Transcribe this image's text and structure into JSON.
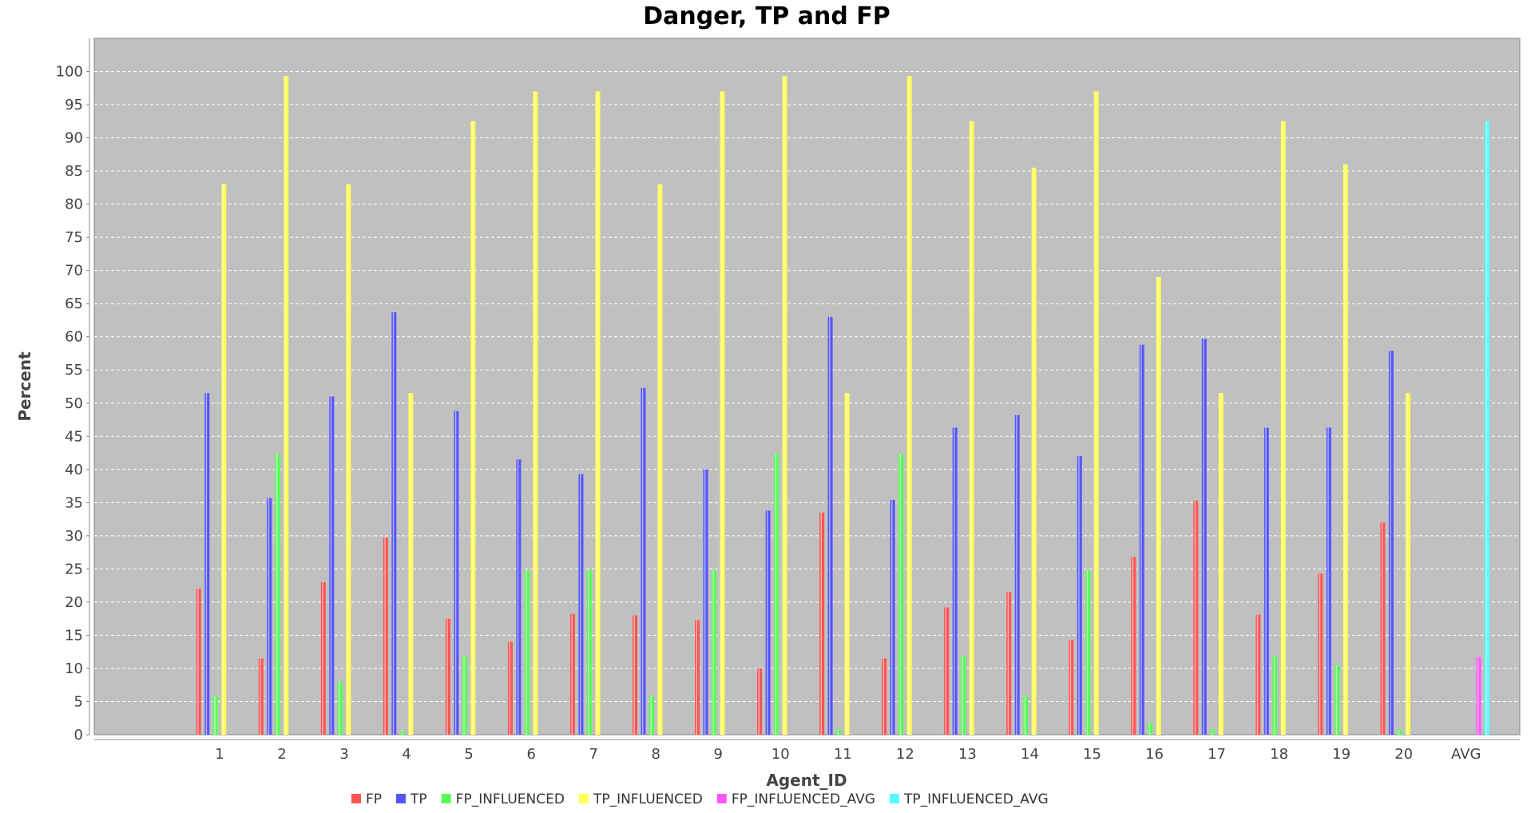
{
  "chart_data": {
    "type": "bar",
    "title": "Danger, TP and FP",
    "xlabel": "Agent_ID",
    "ylabel": "Percent",
    "ylim": [
      0,
      105
    ],
    "yticks": [
      0,
      5,
      10,
      15,
      20,
      25,
      30,
      35,
      40,
      45,
      50,
      55,
      60,
      65,
      70,
      75,
      80,
      85,
      90,
      95,
      100
    ],
    "grid": true,
    "legend_position": "bottom",
    "plot_background": "#c0c0c0",
    "categories": [
      "1",
      "2",
      "3",
      "4",
      "5",
      "6",
      "7",
      "8",
      "9",
      "10",
      "11",
      "12",
      "13",
      "14",
      "15",
      "16",
      "17",
      "18",
      "19",
      "20",
      "AVG"
    ],
    "series": [
      {
        "name": "FP",
        "color": "#ff5555",
        "values": [
          22,
          11.5,
          23,
          29.7,
          17.5,
          14,
          18.2,
          18,
          17.3,
          10,
          33.5,
          11.5,
          19.2,
          21.5,
          14.3,
          26.8,
          35.3,
          18.1,
          24.3,
          32,
          null
        ]
      },
      {
        "name": "TP",
        "color": "#5555ff",
        "values": [
          51.5,
          35.7,
          51,
          63.7,
          48.8,
          41.5,
          39.3,
          52.3,
          40,
          33.8,
          63,
          35.4,
          46.3,
          48.2,
          42,
          58.8,
          59.7,
          46.3,
          46.3,
          57.9,
          null
        ]
      },
      {
        "name": "FP_INFLUENCED",
        "color": "#55ff55",
        "values": [
          5.8,
          42.3,
          8,
          0.5,
          11.8,
          24.8,
          24.8,
          5.8,
          24.8,
          42.3,
          0.8,
          42.3,
          11.8,
          5.8,
          24.8,
          1.8,
          0.8,
          11.8,
          10.5,
          0.7,
          null
        ]
      },
      {
        "name": "TP_INFLUENCED",
        "color": "#ffff55",
        "values": [
          83,
          99.3,
          83,
          51.5,
          92.5,
          97,
          97,
          83,
          97,
          99.3,
          51.5,
          99.3,
          92.5,
          85.5,
          97,
          69,
          51.5,
          92.5,
          86,
          51.5,
          null
        ]
      },
      {
        "name": "FP_INFLUENCED_AVG",
        "color": "#ff55ff",
        "values": [
          null,
          null,
          null,
          null,
          null,
          null,
          null,
          null,
          null,
          null,
          null,
          null,
          null,
          null,
          null,
          null,
          null,
          null,
          null,
          null,
          11.7
        ]
      },
      {
        "name": "TP_INFLUENCED_AVG",
        "color": "#55ffff",
        "values": [
          null,
          null,
          null,
          null,
          null,
          null,
          null,
          null,
          null,
          null,
          null,
          null,
          null,
          null,
          null,
          null,
          null,
          null,
          null,
          null,
          92.5
        ]
      }
    ]
  }
}
